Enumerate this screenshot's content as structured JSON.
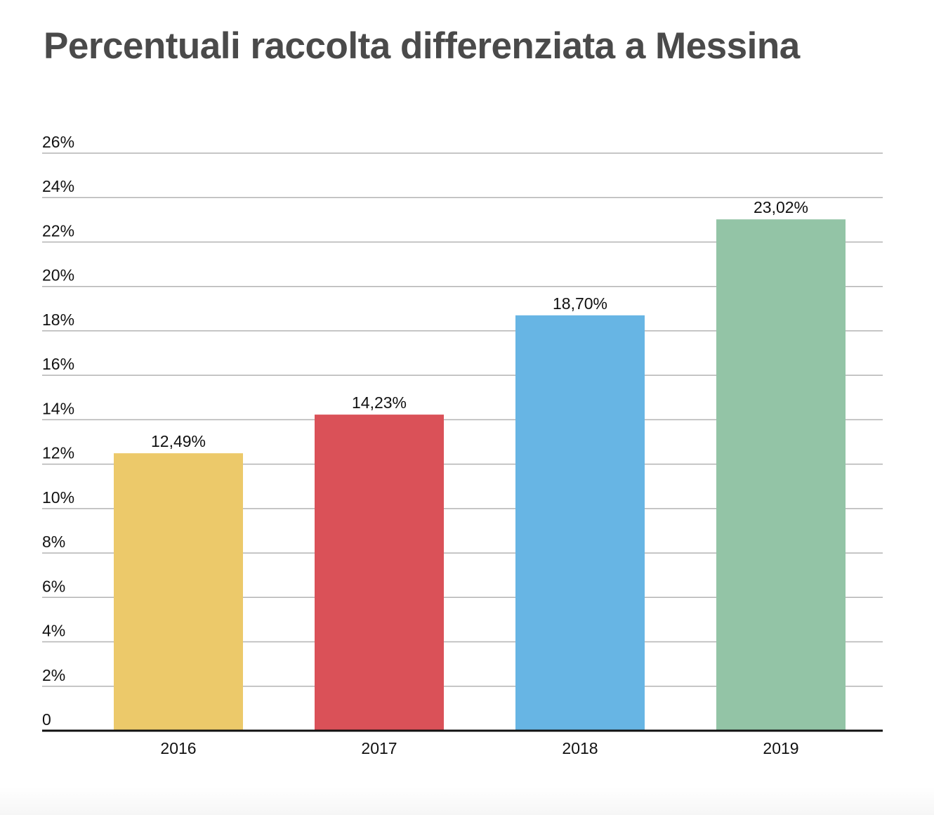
{
  "chart_data": {
    "type": "bar",
    "title": "Percentuali raccolta differenziata a Messina",
    "categories": [
      "2016",
      "2017",
      "2018",
      "2019"
    ],
    "values": [
      12.49,
      14.23,
      18.7,
      23.02
    ],
    "value_labels": [
      "12,49%",
      "14,23%",
      "18,70%",
      "23,02%"
    ],
    "colors": [
      "#ecc96a",
      "#da5158",
      "#67b5e4",
      "#93c4a6"
    ],
    "ylim": [
      0,
      26
    ],
    "y_ticks": [
      0,
      2,
      4,
      6,
      8,
      10,
      12,
      14,
      16,
      18,
      20,
      22,
      24,
      26
    ],
    "y_tick_labels": [
      "0",
      "2%",
      "4%",
      "6%",
      "8%",
      "10%",
      "12%",
      "14%",
      "16%",
      "18%",
      "20%",
      "22%",
      "24%",
      "26%"
    ],
    "grid": true,
    "legend": "none",
    "xlabel": "",
    "ylabel": ""
  }
}
